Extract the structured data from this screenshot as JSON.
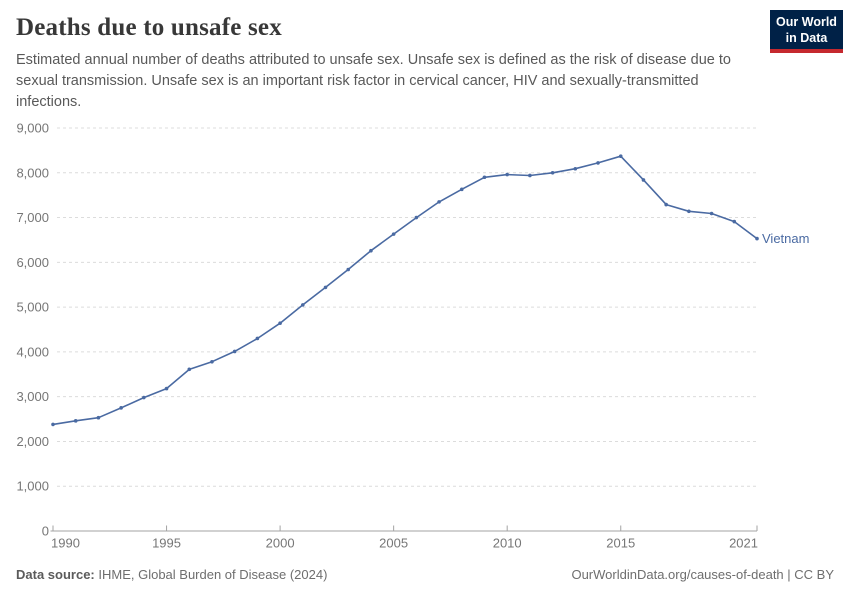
{
  "header": {
    "title": "Deaths due to unsafe sex",
    "subtitle": "Estimated annual number of deaths attributed to unsafe sex. Unsafe sex is defined as the risk of disease due to sexual transmission. Unsafe sex is an important risk factor in cervical cancer, HIV and sexually-transmitted infections."
  },
  "logo": {
    "line1": "Our World",
    "line2": "in Data",
    "bg_color": "#002147",
    "bar_color": "#c5292f"
  },
  "footer": {
    "source_label": "Data source:",
    "source_value": " IHME, Global Burden of Disease (2024)",
    "right_text": "OurWorldinData.org/causes-of-death | CC BY"
  },
  "chart_data": {
    "type": "line",
    "title": "Deaths due to unsafe sex",
    "entity_label": "Vietnam",
    "line_color": "#4a6aa2",
    "grid_color": "#dcdcdc",
    "axis_color": "#a3a3a3",
    "tick_label_color": "#767676",
    "grid": "horizontal-dashed",
    "legend_position": "end-of-line-label",
    "xlim": [
      1990,
      2021
    ],
    "ylim": [
      0,
      9000
    ],
    "xticks": [
      1990,
      1995,
      2000,
      2005,
      2010,
      2015,
      2021
    ],
    "xtick_labels": [
      "1990",
      "1995",
      "2000",
      "2005",
      "2010",
      "2015",
      "2021"
    ],
    "yticks": [
      0,
      1000,
      2000,
      3000,
      4000,
      5000,
      6000,
      7000,
      8000,
      9000
    ],
    "ytick_labels": [
      "0",
      "1,000",
      "2,000",
      "3,000",
      "4,000",
      "5,000",
      "6,000",
      "7,000",
      "8,000",
      "9,000"
    ],
    "x": [
      1990,
      1991,
      1992,
      1993,
      1994,
      1995,
      1996,
      1997,
      1998,
      1999,
      2000,
      2001,
      2002,
      2003,
      2004,
      2005,
      2006,
      2007,
      2008,
      2009,
      2010,
      2011,
      2012,
      2013,
      2014,
      2015,
      2016,
      2017,
      2018,
      2019,
      2020,
      2021
    ],
    "series": [
      {
        "name": "Vietnam",
        "values": [
          2380,
          2460,
          2530,
          2750,
          2980,
          3180,
          3610,
          3780,
          4010,
          4300,
          4640,
          5050,
          5440,
          5840,
          6260,
          6630,
          7000,
          7350,
          7630,
          7900,
          7960,
          7940,
          8000,
          8090,
          8220,
          8370,
          7840,
          7290,
          7140,
          7090,
          6910,
          6530
        ]
      }
    ]
  }
}
